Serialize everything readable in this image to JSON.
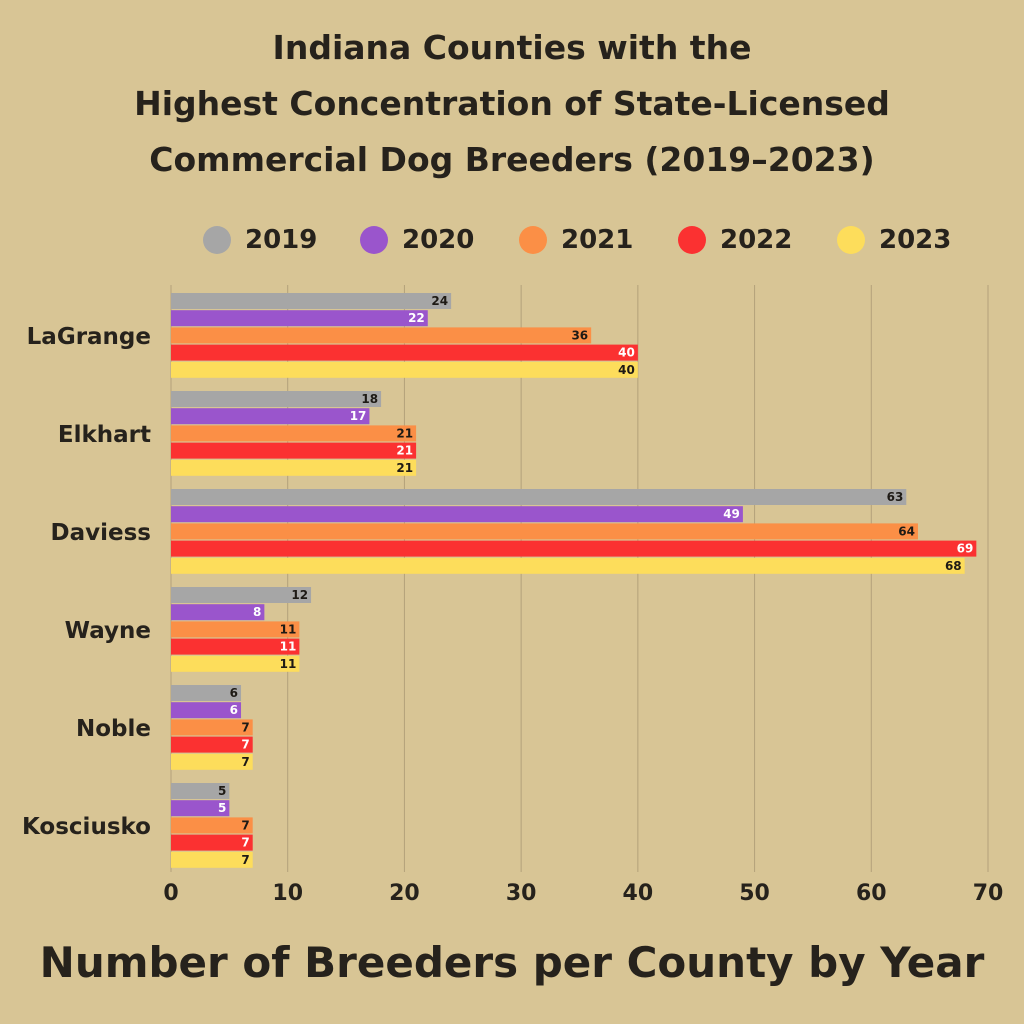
{
  "chart_data": {
    "type": "bar",
    "orientation": "horizontal",
    "title_lines": [
      "Indiana Counties with the",
      "Highest Concentration of State-Licensed",
      "Commercial Dog Breeders (2019–2023)"
    ],
    "xlabel": "Number of Breeders per County by Year",
    "ylabel": "",
    "xlim": [
      0,
      70
    ],
    "xticks": [
      "0",
      "10",
      "20",
      "30",
      "40",
      "50",
      "60",
      "70"
    ],
    "grid": true,
    "legend_position": "top",
    "categories": [
      "LaGrange",
      "Elkhart",
      "Daviess",
      "Wayne",
      "Noble",
      "Kosciusko"
    ],
    "series": [
      {
        "name": "2019",
        "color": "#a6a6a6",
        "label_color": "#1e1a15",
        "values": [
          24,
          18,
          63,
          12,
          6,
          5
        ]
      },
      {
        "name": "2020",
        "color": "#9a55cc",
        "label_color": "#ffffff",
        "values": [
          22,
          17,
          49,
          8,
          6,
          5
        ]
      },
      {
        "name": "2021",
        "color": "#fb8f46",
        "label_color": "#1e1a15",
        "values": [
          36,
          21,
          64,
          11,
          7,
          7
        ]
      },
      {
        "name": "2022",
        "color": "#fb3131",
        "label_color": "#ffffff",
        "values": [
          40,
          21,
          69,
          11,
          7,
          7
        ]
      },
      {
        "name": "2023",
        "color": "#fddd5b",
        "label_color": "#1e1a15",
        "values": [
          40,
          21,
          68,
          11,
          7,
          7
        ]
      }
    ]
  }
}
